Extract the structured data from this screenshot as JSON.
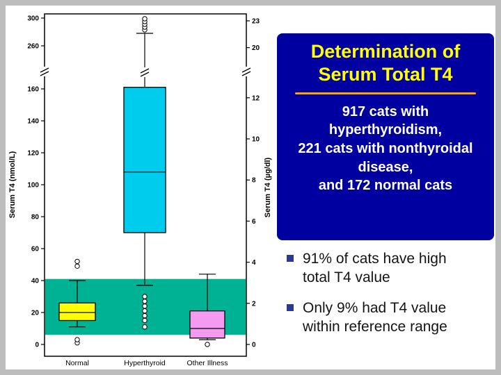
{
  "panel": {
    "title_lines": [
      "Determination of",
      "Serum Total T4"
    ],
    "body_lines": [
      "917 cats with",
      "hyperthyroidism,",
      "221 cats with nonthyroidal",
      "disease,",
      "and 172 normal cats"
    ],
    "bg_color": "#0000A0",
    "title_color": "#FFFF00",
    "rule_color": "#FFA500",
    "body_color": "#FFFFFF"
  },
  "bullets": [
    {
      "text": "91% of cats have  high\ntotal T4 value"
    },
    {
      "text": "Only 9% had T4 value\nwithin reference range"
    }
  ],
  "bullet_color": "#2B3990",
  "chart_data": {
    "type": "boxplot",
    "title": "",
    "categories": [
      "Normal",
      "Hyperthyroid",
      "Other Illness"
    ],
    "y_axis_left": {
      "label": "Serum T4 (nmol/L)",
      "ticks_lower": [
        0,
        20,
        40,
        60,
        80,
        100,
        120,
        140,
        160
      ],
      "ticks_upper": [
        260,
        300
      ]
    },
    "y_axis_right": {
      "label": "Serum T4 (µg/dl)",
      "ticks_lower": [
        0,
        2,
        4,
        6,
        8,
        10,
        12
      ],
      "ticks_upper": [
        20,
        23
      ],
      "nmol_per_unit": 12.87
    },
    "axis_break": {
      "lower_max": 170,
      "upper_min": 250
    },
    "reference_band": {
      "low": 6,
      "high": 41,
      "color": "#00B294"
    },
    "boxes": [
      {
        "category": "Normal",
        "color": "#FFFF00",
        "q1": 15,
        "median": 20,
        "q3": 26,
        "whisker_low": 11,
        "whisker_high": 40,
        "outliers": [
          49,
          52,
          1,
          3
        ]
      },
      {
        "category": "Hyperthyroid",
        "color": "#00CCEE",
        "q1": 70,
        "median": 108,
        "q3": 161,
        "whisker_low": 37,
        "whisker_high": 278,
        "outliers": [
          30,
          27,
          24,
          21,
          18,
          15,
          11,
          283,
          287,
          291,
          295,
          299
        ]
      },
      {
        "category": "Other Illness",
        "color": "#F49AF0",
        "q1": 4,
        "median": 10,
        "q3": 21,
        "whisker_low": 3,
        "whisker_high": 44,
        "outliers": [
          0
        ]
      }
    ]
  }
}
